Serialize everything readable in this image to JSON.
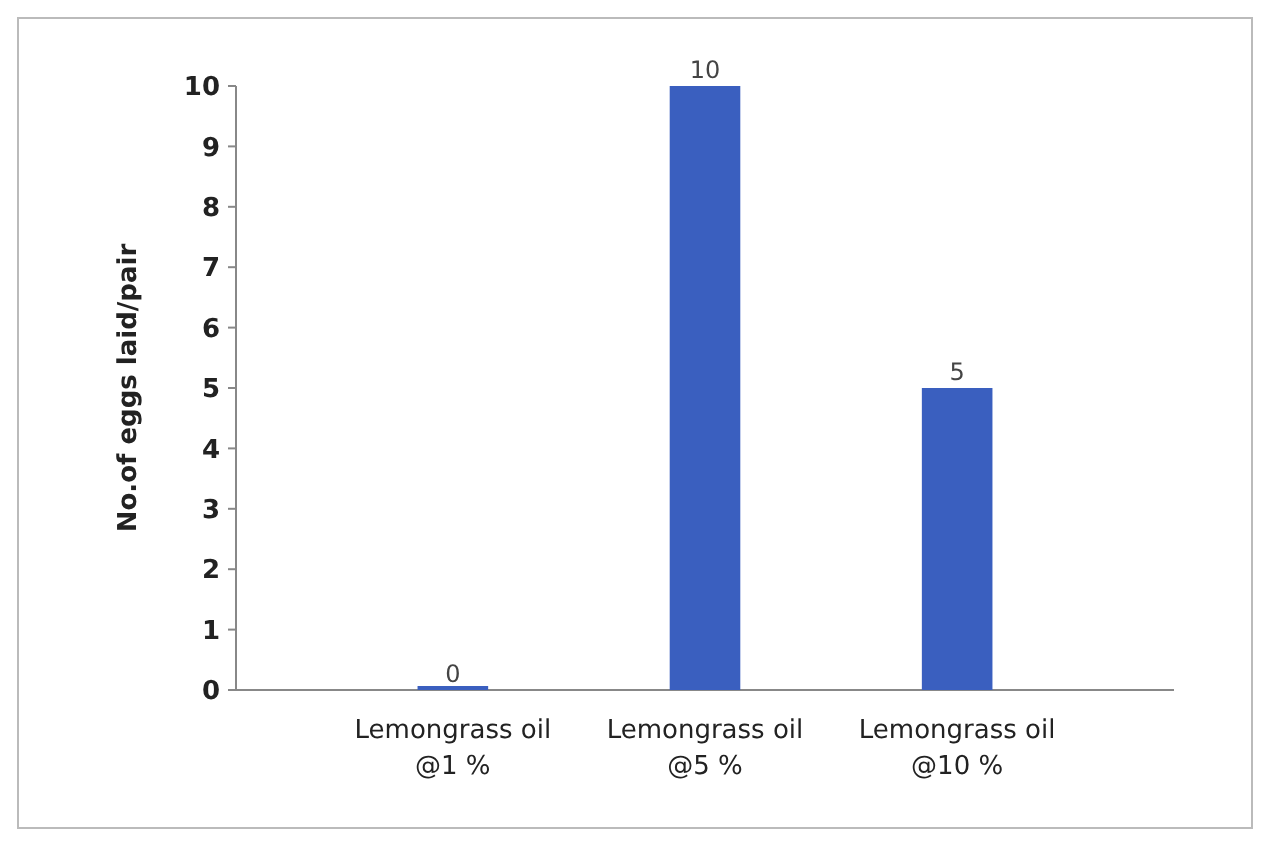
{
  "chart_data": {
    "type": "bar",
    "ylabel": "No.of eggs laid/pair",
    "categories": [
      "Lemongrass oil @1 %",
      "Lemongrass oil @5 %",
      "Lemongrass oil @10 %"
    ],
    "values": [
      0,
      10,
      5
    ],
    "color": "#3a5fbf",
    "data_labels": true,
    "ylim": [
      0,
      10
    ],
    "yticks": [
      0,
      1,
      2,
      3,
      4,
      5,
      6,
      7,
      8,
      9,
      10
    ],
    "grid": false
  }
}
